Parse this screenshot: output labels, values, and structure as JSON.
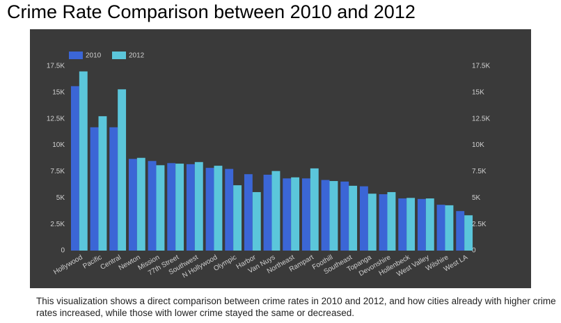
{
  "chart_data": {
    "type": "bar",
    "title": "Crime Rate Comparison between 2010 and 2012",
    "caption": "This visualization shows a direct comparison between crime rates in 2010 and 2012, and how cities already with higher crime rates increased, while those with lower crime stayed the same or decreased.",
    "categories": [
      "Hollywood",
      "Pacific",
      "Central",
      "Newton",
      "Mission",
      "77th Street",
      "Southwest",
      "N Hollywood",
      "Olympic",
      "Harbor",
      "Van Nuys",
      "Northeast",
      "Rampart",
      "Foothill",
      "Southeast",
      "Topanga",
      "Devonshire",
      "Hollenbeck",
      "West Valley",
      "Wilshire",
      "West LA"
    ],
    "series": [
      {
        "name": "2010",
        "color": "#3b66d6",
        "values": [
          15600,
          11700,
          11700,
          8700,
          8500,
          8300,
          8200,
          7850,
          7750,
          7250,
          7200,
          6850,
          6850,
          6700,
          6550,
          6100,
          5350,
          4950,
          4900,
          4350,
          3750
        ]
      },
      {
        "name": "2012",
        "color": "#5bc6db",
        "values": [
          17000,
          12750,
          15300,
          8800,
          8100,
          8250,
          8400,
          8050,
          6200,
          5550,
          7550,
          6950,
          7800,
          6600,
          6150,
          5400,
          5550,
          5000,
          4950,
          4300,
          3350
        ]
      }
    ],
    "ylim": [
      0,
      17500
    ],
    "yticks": [
      0,
      {
        "value": 2500,
        "label": "2.5K"
      },
      {
        "value": 5000,
        "label": "5K"
      },
      {
        "value": 7500,
        "label": "7.5K"
      },
      {
        "value": 10000,
        "label": "10K"
      },
      {
        "value": 12500,
        "label": "12.5K"
      },
      {
        "value": 15000,
        "label": "15K"
      },
      {
        "value": 17500,
        "label": "17.5K"
      }
    ],
    "y2lim": [
      0,
      17500
    ],
    "y2ticks": [
      0,
      {
        "value": 2500,
        "label": "2.5K"
      },
      {
        "value": 5000,
        "label": "5K"
      },
      {
        "value": 7500,
        "label": "7.5K"
      },
      {
        "value": 10000,
        "label": "10K"
      },
      {
        "value": 12500,
        "label": "12.5K"
      },
      {
        "value": 15000,
        "label": "15K"
      },
      {
        "value": 17500,
        "label": "17.5K"
      }
    ],
    "background": "#3a3a3a",
    "legend": "top-left"
  }
}
